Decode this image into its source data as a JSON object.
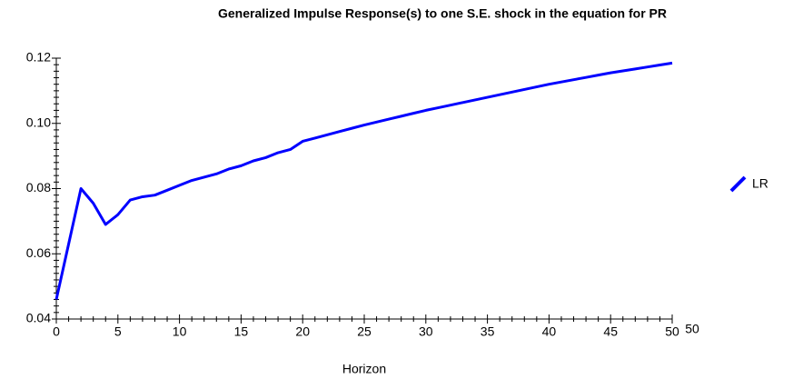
{
  "chart_data": {
    "type": "line",
    "title": "Generalized Impulse Response(s) to one S.E. shock in the equation for PR",
    "x_label": "Horizon",
    "x": [
      0,
      1,
      2,
      3,
      4,
      5,
      6,
      7,
      8,
      9,
      10,
      11,
      12,
      13,
      14,
      15,
      16,
      17,
      18,
      19,
      20,
      21,
      22,
      23,
      24,
      25,
      26,
      27,
      28,
      29,
      30,
      31,
      32,
      33,
      34,
      35,
      36,
      37,
      38,
      39,
      40,
      41,
      42,
      43,
      44,
      45,
      46,
      47,
      48,
      49,
      50
    ],
    "series": [
      {
        "name": "LR",
        "color": "#0000ff",
        "values": [
          0.046,
          0.063,
          0.08,
          0.0755,
          0.069,
          0.072,
          0.0765,
          0.0775,
          0.078,
          0.0795,
          0.081,
          0.0825,
          0.0835,
          0.0845,
          0.086,
          0.087,
          0.0885,
          0.0895,
          0.091,
          0.092,
          0.0945,
          0.0955,
          0.0965,
          0.0975,
          0.0985,
          0.0995,
          0.1004,
          0.1013,
          0.1022,
          0.1031,
          0.104,
          0.1048,
          0.1056,
          0.1064,
          0.1072,
          0.108,
          0.1088,
          0.1096,
          0.1104,
          0.1112,
          0.112,
          0.1127,
          0.1134,
          0.1141,
          0.1148,
          0.1155,
          0.1161,
          0.1167,
          0.1173,
          0.1179,
          0.1185
        ]
      }
    ],
    "xlim": [
      0,
      50
    ],
    "xticks": [
      0,
      5,
      10,
      15,
      20,
      25,
      30,
      35,
      40,
      45,
      50
    ],
    "ylim": [
      0.04,
      0.12
    ],
    "yticks": [
      0.04,
      0.06,
      0.08,
      {
        "value": 0.1,
        "label": "0.10"
      },
      0.12
    ],
    "annotations": [
      "50"
    ],
    "grid": false,
    "legend": "right"
  }
}
